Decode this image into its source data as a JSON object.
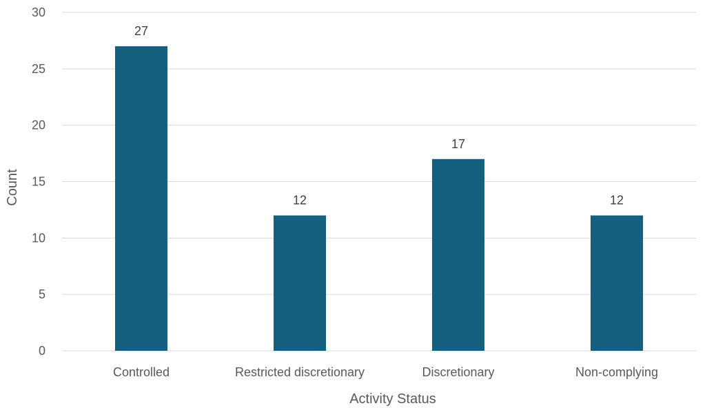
{
  "chart_data": {
    "type": "bar",
    "categories": [
      "Controlled",
      "Restricted discretionary",
      "Discretionary",
      "Non-complying"
    ],
    "values": [
      27,
      12,
      17,
      12
    ],
    "data_labels": [
      "27",
      "12",
      "17",
      "12"
    ],
    "xlabel": "Activity Status",
    "ylabel": "Count",
    "ylim": [
      0,
      30
    ],
    "yticks": [
      0,
      5,
      10,
      15,
      20,
      25,
      30
    ],
    "grid": true,
    "legend": "none",
    "bar_color": "#15607f",
    "grid_color": "#d9d9d9"
  }
}
